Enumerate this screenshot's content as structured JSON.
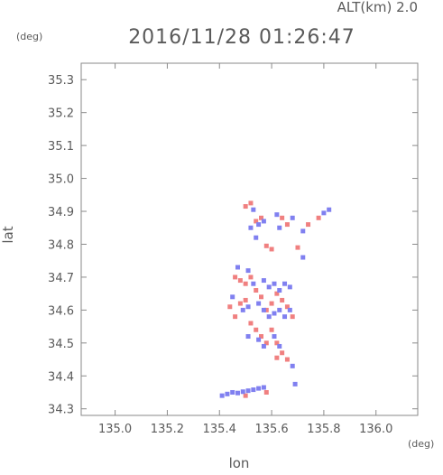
{
  "chart_data": {
    "type": "scatter",
    "title": "2016/11/28 01:26:47",
    "subtitle": "ALT(km) 2.0",
    "xlabel": "lon",
    "ylabel": "lat",
    "x_unit": "(deg)",
    "y_unit": "(deg)",
    "xlim": [
      134.87,
      136.16
    ],
    "ylim": [
      34.28,
      35.35
    ],
    "x_ticks": [
      "135.0",
      "135.2",
      "135.4",
      "135.6",
      "135.8",
      "136.0"
    ],
    "y_ticks": [
      "34.3",
      "34.4",
      "34.5",
      "34.6",
      "34.7",
      "34.8",
      "34.9",
      "35.0",
      "35.1",
      "35.2",
      "35.3"
    ],
    "grid": false,
    "colors": {
      "positive": "#f08080",
      "negative": "#8080f0",
      "axis": "#8a8a8a",
      "text": "#5a5a5a"
    },
    "series": [
      {
        "values": [
          [
            135.5,
            34.915
          ],
          [
            135.52,
            34.925
          ],
          [
            135.54,
            34.87
          ],
          [
            135.56,
            34.88
          ],
          [
            135.58,
            34.795
          ],
          [
            135.6,
            34.785
          ],
          [
            135.64,
            34.88
          ],
          [
            135.66,
            34.86
          ],
          [
            135.7,
            34.79
          ],
          [
            135.74,
            34.86
          ],
          [
            135.78,
            34.88
          ],
          [
            135.46,
            34.7
          ],
          [
            135.48,
            34.69
          ],
          [
            135.5,
            34.68
          ],
          [
            135.52,
            34.7
          ],
          [
            135.48,
            34.62
          ],
          [
            135.5,
            34.63
          ],
          [
            135.54,
            34.66
          ],
          [
            135.56,
            34.64
          ],
          [
            135.58,
            34.6
          ],
          [
            135.6,
            34.62
          ],
          [
            135.62,
            34.65
          ],
          [
            135.64,
            34.63
          ],
          [
            135.66,
            34.61
          ],
          [
            135.68,
            34.58
          ],
          [
            135.52,
            34.56
          ],
          [
            135.54,
            34.54
          ],
          [
            135.56,
            34.52
          ],
          [
            135.58,
            34.5
          ],
          [
            135.6,
            34.54
          ],
          [
            135.62,
            34.5
          ],
          [
            135.64,
            34.47
          ],
          [
            135.66,
            34.45
          ],
          [
            135.44,
            34.61
          ],
          [
            135.46,
            34.58
          ],
          [
            135.62,
            34.455
          ],
          [
            135.58,
            34.35
          ],
          [
            135.5,
            34.34
          ]
        ]
      },
      {
        "values": [
          [
            135.53,
            34.905
          ],
          [
            135.55,
            34.86
          ],
          [
            135.57,
            34.87
          ],
          [
            135.52,
            34.85
          ],
          [
            135.54,
            34.82
          ],
          [
            135.62,
            34.89
          ],
          [
            135.63,
            34.85
          ],
          [
            135.68,
            34.88
          ],
          [
            135.72,
            34.84
          ],
          [
            135.72,
            34.76
          ],
          [
            135.8,
            34.895
          ],
          [
            135.82,
            34.905
          ],
          [
            135.47,
            34.73
          ],
          [
            135.51,
            34.72
          ],
          [
            135.53,
            34.68
          ],
          [
            135.57,
            34.69
          ],
          [
            135.59,
            34.67
          ],
          [
            135.61,
            34.68
          ],
          [
            135.63,
            34.66
          ],
          [
            135.65,
            34.68
          ],
          [
            135.67,
            34.67
          ],
          [
            135.49,
            34.6
          ],
          [
            135.51,
            34.61
          ],
          [
            135.55,
            34.62
          ],
          [
            135.57,
            34.6
          ],
          [
            135.59,
            34.58
          ],
          [
            135.61,
            34.59
          ],
          [
            135.63,
            34.6
          ],
          [
            135.65,
            34.58
          ],
          [
            135.67,
            34.6
          ],
          [
            135.51,
            34.52
          ],
          [
            135.55,
            34.51
          ],
          [
            135.57,
            34.49
          ],
          [
            135.61,
            34.52
          ],
          [
            135.63,
            34.49
          ],
          [
            135.45,
            34.64
          ],
          [
            135.68,
            34.43
          ],
          [
            135.69,
            34.375
          ],
          [
            135.41,
            34.34
          ],
          [
            135.43,
            34.345
          ],
          [
            135.45,
            34.35
          ],
          [
            135.47,
            34.348
          ],
          [
            135.49,
            34.352
          ],
          [
            135.51,
            34.355
          ],
          [
            135.53,
            34.358
          ],
          [
            135.55,
            34.362
          ],
          [
            135.57,
            34.365
          ]
        ]
      }
    ]
  }
}
